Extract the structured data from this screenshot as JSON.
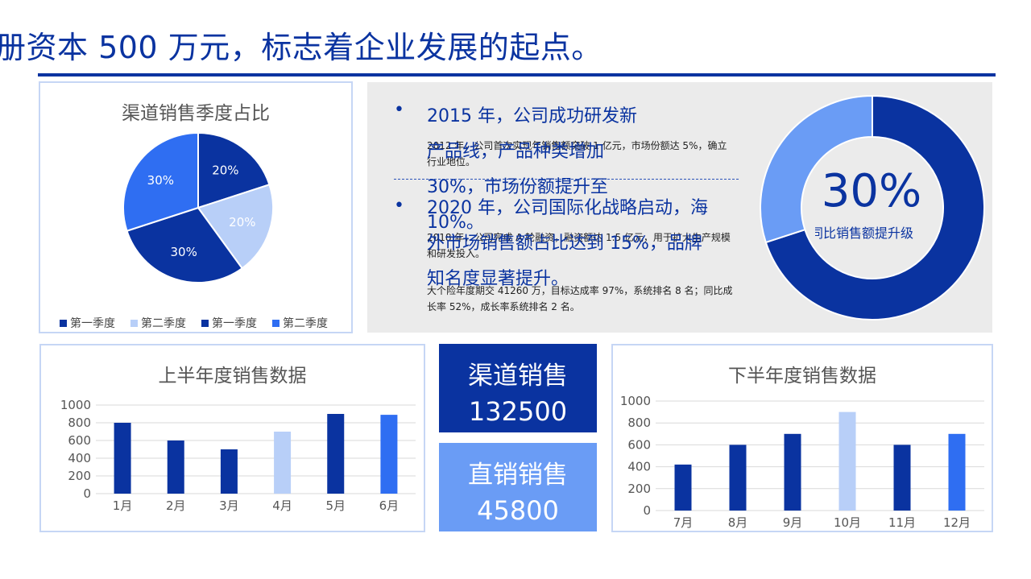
{
  "header": {
    "title": "册资本 500 万元，标志着企业发展的起点。"
  },
  "colors": {
    "navy": "#0a33a0",
    "light": "#b8cff8",
    "bright": "#2f6ef2",
    "mid": "#6a9cf5"
  },
  "highlights": {
    "items": [
      {
        "headline": "2015 年，公司成功研发新产品线，产品种类增加 30%，市场份额提升至 10%。",
        "detail": "2012 年，公司首次实现年销售额突破 1 亿元，市场份额达 5%，确立行业地位。"
      },
      {
        "headline": "2020 年，公司国际化战略启动，海外市场销售额占比达到 15%，品牌知名度显著提升。",
        "detail": "2018 年，公司完成 A 轮融资，融资额达 1.5 亿元，用于扩大生产规模和研发投入。"
      }
    ],
    "note": "大个险年度期交 41260 万，目标达成率 97%，系统排名 8 名；同比成长率 52%，成长率系统排名 2 名。"
  },
  "kpis": [
    {
      "label": "渠道销售",
      "value": "132500"
    },
    {
      "label": "直销销售",
      "value": "45800"
    }
  ],
  "chart_data": [
    {
      "type": "pie",
      "title": "渠道销售季度占比",
      "categories": [
        "第一季度",
        "第二季度",
        "第一季度",
        "第二季度"
      ],
      "values": [
        20,
        20,
        30,
        30
      ],
      "labels": [
        "20%",
        "20%",
        "30%",
        "30%"
      ],
      "colors": [
        "#0a33a0",
        "#b8cff8",
        "#0a33a0",
        "#2f6ef2"
      ],
      "legend": [
        "第一季度",
        "第二季度",
        "第一季度",
        "第二季度"
      ],
      "legend_colors": [
        "#0a33a0",
        "#b8cff8",
        "#0a33a0",
        "#2f6ef2"
      ],
      "legend_position": "bottom"
    },
    {
      "type": "pie",
      "subtype": "donut",
      "values": [
        70,
        30
      ],
      "colors": [
        "#0a33a0",
        "#6a9cf5"
      ],
      "center_value": "30%",
      "center_label": "同比销售额提升级"
    },
    {
      "type": "bar",
      "title": "上半年度销售数据",
      "categories": [
        "1月",
        "2月",
        "3月",
        "4月",
        "5月",
        "6月"
      ],
      "values": [
        800,
        600,
        500,
        700,
        900,
        890
      ],
      "colors": [
        "#0a33a0",
        "#0a33a0",
        "#0a33a0",
        "#b8cff8",
        "#0a33a0",
        "#2f6ef2"
      ],
      "ylim": [
        0,
        1000
      ],
      "yticks": [
        "0",
        "200",
        "400",
        "600",
        "800",
        "1000"
      ],
      "grid": true
    },
    {
      "type": "bar",
      "title": "下半年度销售数据",
      "categories": [
        "7月",
        "8月",
        "9月",
        "10月",
        "11月",
        "12月"
      ],
      "values": [
        420,
        600,
        700,
        900,
        600,
        700
      ],
      "colors": [
        "#0a33a0",
        "#0a33a0",
        "#0a33a0",
        "#b8cff8",
        "#0a33a0",
        "#2f6ef2"
      ],
      "ylim": [
        0,
        1000
      ],
      "yticks": [
        "0",
        "200",
        "400",
        "600",
        "800",
        "1000"
      ],
      "grid": true
    }
  ]
}
